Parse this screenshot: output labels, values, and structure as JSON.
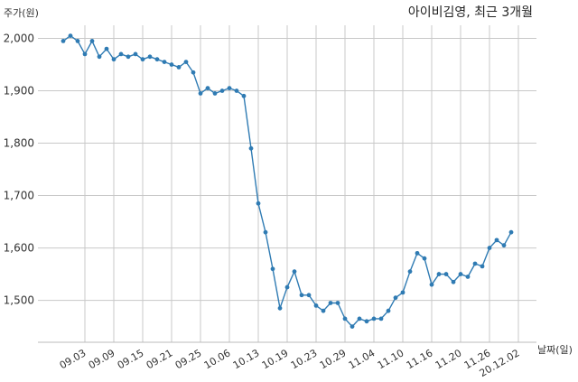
{
  "chart_data": {
    "type": "line",
    "title": "아이비김영, 최근 3개월",
    "xlabel": "날짜(일)",
    "ylabel": "주가(원)",
    "ylim": [
      1420,
      2025
    ],
    "yticks": [
      1500,
      1600,
      1700,
      1800,
      1900,
      2000
    ],
    "ytick_labels": [
      "1,500",
      "1,600",
      "1,700",
      "1,800",
      "1,900",
      "2,000"
    ],
    "xtick_labels": [
      "09.03",
      "09.09",
      "09.15",
      "09.21",
      "09.25",
      "10.06",
      "10.13",
      "10.19",
      "10.23",
      "10.29",
      "11.04",
      "11.10",
      "11.16",
      "11.20",
      "11.26",
      "20.12.02"
    ],
    "xtick_index": [
      3,
      7,
      11,
      15,
      19,
      23,
      27,
      31,
      35,
      39,
      43,
      47,
      51,
      55,
      59,
      63
    ],
    "grid": true,
    "color": "#2f7bb3",
    "series": [
      {
        "values": [
          1995,
          2005,
          1995,
          1970,
          1995,
          1965,
          1980,
          1960,
          1970,
          1965,
          1970,
          1960,
          1965,
          1960,
          1955,
          1950,
          1945,
          1955,
          1935,
          1895,
          1905,
          1895,
          1900,
          1905,
          1900,
          1890,
          1790,
          1685,
          1630,
          1560,
          1485,
          1525,
          1555,
          1510,
          1510,
          1490,
          1480,
          1495,
          1495,
          1465,
          1450,
          1465,
          1460,
          1465,
          1465,
          1480,
          1505,
          1515,
          1555,
          1590,
          1580,
          1530,
          1550,
          1550,
          1535,
          1550,
          1545,
          1570,
          1565,
          1600,
          1615,
          1605,
          1630
        ]
      }
    ]
  }
}
